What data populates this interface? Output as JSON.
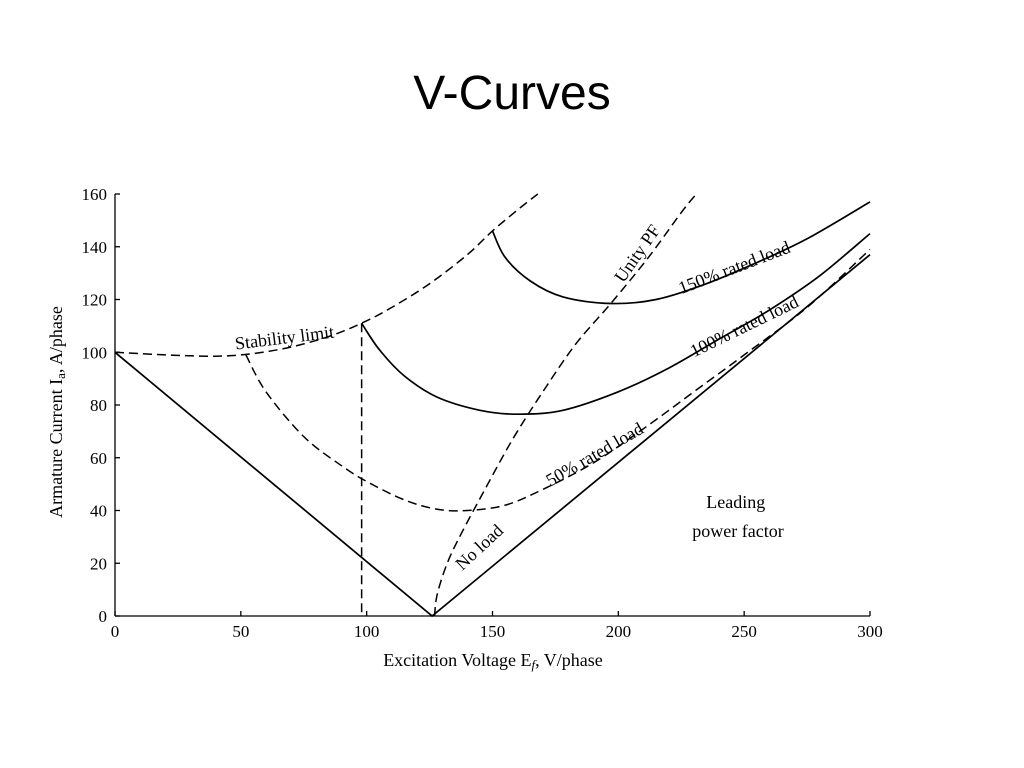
{
  "slide": {
    "title": "V-Curves"
  },
  "chart_data": {
    "type": "line",
    "xlabel": "Excitation Voltage E",
    "xlabel_sub": "f",
    "xlabel_suffix": ", V/phase",
    "ylabel": "Armature Current I",
    "ylabel_sub": "a",
    "ylabel_suffix": ", A/phase",
    "xlim": [
      0,
      300
    ],
    "ylim": [
      0,
      160
    ],
    "xticks": [
      0,
      50,
      100,
      150,
      200,
      250,
      300
    ],
    "yticks": [
      0,
      20,
      40,
      60,
      80,
      100,
      120,
      140,
      160
    ],
    "grid": false,
    "series": [
      {
        "name": "No load",
        "style": "solid",
        "points": [
          [
            0,
            100
          ],
          [
            126,
            0
          ],
          [
            300,
            137
          ]
        ]
      },
      {
        "name": "50% rated load",
        "style": "dashed",
        "points": [
          [
            52,
            99
          ],
          [
            60,
            85
          ],
          [
            75,
            68
          ],
          [
            90,
            57
          ],
          [
            100,
            51
          ],
          [
            115,
            44
          ],
          [
            128,
            40.5
          ],
          [
            140,
            40
          ],
          [
            155,
            42
          ],
          [
            170,
            48
          ],
          [
            190,
            58
          ],
          [
            210,
            71
          ],
          [
            230,
            85
          ],
          [
            250,
            99
          ],
          [
            275,
            117
          ],
          [
            300,
            139
          ]
        ]
      },
      {
        "name": "100% rated load",
        "style": "solid",
        "points": [
          [
            98,
            111
          ],
          [
            105,
            101
          ],
          [
            115,
            91
          ],
          [
            128,
            83
          ],
          [
            145,
            78
          ],
          [
            160,
            76.5
          ],
          [
            178,
            78
          ],
          [
            200,
            85
          ],
          [
            220,
            94
          ],
          [
            240,
            105
          ],
          [
            260,
            116
          ],
          [
            280,
            129
          ],
          [
            300,
            145
          ]
        ]
      },
      {
        "name": "150% rated load",
        "style": "solid",
        "points": [
          [
            150,
            146
          ],
          [
            155,
            136
          ],
          [
            165,
            127
          ],
          [
            178,
            121
          ],
          [
            197,
            118.5
          ],
          [
            215,
            120
          ],
          [
            235,
            126
          ],
          [
            255,
            134
          ],
          [
            275,
            143
          ],
          [
            300,
            157
          ]
        ]
      },
      {
        "name": "Stability limit",
        "style": "dashed",
        "points": [
          [
            0,
            100
          ],
          [
            20,
            99
          ],
          [
            40,
            98.5
          ],
          [
            55,
            99.5
          ],
          [
            70,
            102
          ],
          [
            85,
            106
          ],
          [
            98,
            111
          ],
          [
            110,
            117
          ],
          [
            125,
            126
          ],
          [
            140,
            137
          ],
          [
            150,
            146
          ],
          [
            160,
            154
          ],
          [
            168,
            160
          ]
        ]
      },
      {
        "name": "Unity PF",
        "style": "dashed",
        "points": [
          [
            127,
            0
          ],
          [
            128,
            8
          ],
          [
            132,
            20
          ],
          [
            138,
            32
          ],
          [
            147,
            48
          ],
          [
            158,
            67
          ],
          [
            170,
            85
          ],
          [
            183,
            103
          ],
          [
            197,
            118.5
          ],
          [
            212,
            136
          ],
          [
            225,
            153
          ],
          [
            231,
            160
          ]
        ]
      },
      {
        "name": "",
        "style": "dashed",
        "points": [
          [
            98,
            111
          ],
          [
            98,
            0
          ]
        ]
      }
    ],
    "annotations": [
      {
        "text": "Stability limit",
        "x": 48,
        "y": 101,
        "angle": -7
      },
      {
        "text": "Unity PF",
        "x": 202,
        "y": 126,
        "angle": -55
      },
      {
        "text": "150% rated load",
        "x": 225,
        "y": 122,
        "angle": -21
      },
      {
        "text": "100% rated load",
        "x": 230,
        "y": 98,
        "angle": -26
      },
      {
        "text": "50% rated load",
        "x": 173,
        "y": 49,
        "angle": -30
      },
      {
        "text": "No load",
        "x": 138,
        "y": 17,
        "angle": -43
      }
    ],
    "region_label": [
      "Leading",
      "power factor"
    ]
  }
}
